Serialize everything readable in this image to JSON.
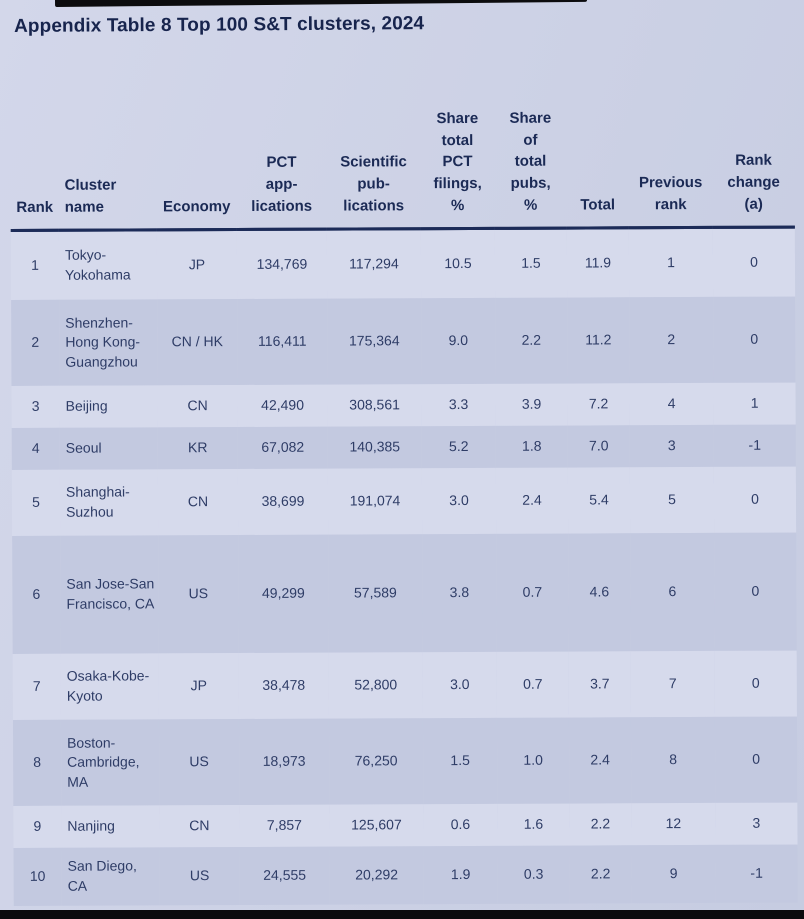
{
  "title": "Appendix Table 8 Top 100 S&T clusters, 2024",
  "colors": {
    "background": "#ccd1e5",
    "row_light": "#d6daec",
    "row_dark": "#c3c9e0",
    "header_text": "#1b2a55",
    "body_text": "#2e3c66",
    "header_rule": "#1c2b58",
    "bezel": "#0c0c0e"
  },
  "table": {
    "headers": [
      "Rank",
      "Cluster\nname",
      "Economy",
      "PCT\napp-\nlications",
      "Scientific\npub-\nlications",
      "Share\ntotal\nPCT\nfilings,\n%",
      "Share\nof\ntotal\npubs,\n%",
      "Total",
      "Previous\nrank",
      "Rank\nchange\n(a)"
    ],
    "rows": [
      {
        "rank": "1",
        "cluster_name": "Tokyo-Yokohama",
        "economy": "JP",
        "pct_applications": "134,769",
        "scientific_publications": "117,294",
        "share_pct_filings": "10.5",
        "share_pubs": "1.5",
        "total": "11.9",
        "previous_rank": "1",
        "rank_change": "0"
      },
      {
        "rank": "2",
        "cluster_name": "Shenzhen-Hong Kong-Guangzhou",
        "economy": "CN / HK",
        "pct_applications": "116,411",
        "scientific_publications": "175,364",
        "share_pct_filings": "9.0",
        "share_pubs": "2.2",
        "total": "11.2",
        "previous_rank": "2",
        "rank_change": "0"
      },
      {
        "rank": "3",
        "cluster_name": "Beijing",
        "economy": "CN",
        "pct_applications": "42,490",
        "scientific_publications": "308,561",
        "share_pct_filings": "3.3",
        "share_pubs": "3.9",
        "total": "7.2",
        "previous_rank": "4",
        "rank_change": "1"
      },
      {
        "rank": "4",
        "cluster_name": "Seoul",
        "economy": "KR",
        "pct_applications": "67,082",
        "scientific_publications": "140,385",
        "share_pct_filings": "5.2",
        "share_pubs": "1.8",
        "total": "7.0",
        "previous_rank": "3",
        "rank_change": "-1"
      },
      {
        "rank": "5",
        "cluster_name": "Shanghai-Suzhou",
        "economy": "CN",
        "pct_applications": "38,699",
        "scientific_publications": "191,074",
        "share_pct_filings": "3.0",
        "share_pubs": "2.4",
        "total": "5.4",
        "previous_rank": "5",
        "rank_change": "0"
      },
      {
        "rank": "6",
        "cluster_name": "San Jose-San Francisco, CA",
        "economy": "US",
        "pct_applications": "49,299",
        "scientific_publications": "57,589",
        "share_pct_filings": "3.8",
        "share_pubs": "0.7",
        "total": "4.6",
        "previous_rank": "6",
        "rank_change": "0"
      },
      {
        "rank": "7",
        "cluster_name": "Osaka-Kobe-Kyoto",
        "economy": "JP",
        "pct_applications": "38,478",
        "scientific_publications": "52,800",
        "share_pct_filings": "3.0",
        "share_pubs": "0.7",
        "total": "3.7",
        "previous_rank": "7",
        "rank_change": "0"
      },
      {
        "rank": "8",
        "cluster_name": "Boston-Cambridge, MA",
        "economy": "US",
        "pct_applications": "18,973",
        "scientific_publications": "76,250",
        "share_pct_filings": "1.5",
        "share_pubs": "1.0",
        "total": "2.4",
        "previous_rank": "8",
        "rank_change": "0"
      },
      {
        "rank": "9",
        "cluster_name": "Nanjing",
        "economy": "CN",
        "pct_applications": "7,857",
        "scientific_publications": "125,607",
        "share_pct_filings": "0.6",
        "share_pubs": "1.6",
        "total": "2.2",
        "previous_rank": "12",
        "rank_change": "3"
      },
      {
        "rank": "10",
        "cluster_name": "San Diego, CA",
        "economy": "US",
        "pct_applications": "24,555",
        "scientific_publications": "20,292",
        "share_pct_filings": "1.9",
        "share_pubs": "0.3",
        "total": "2.2",
        "previous_rank": "9",
        "rank_change": "-1"
      }
    ]
  }
}
